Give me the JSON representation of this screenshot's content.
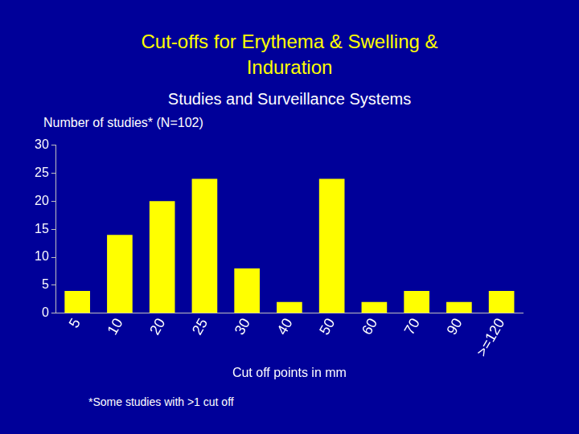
{
  "chart_data": {
    "type": "bar",
    "title": [
      "Cut-offs for Erythema & Swelling &",
      "Induration"
    ],
    "subtitle": "Studies and Surveillance Systems",
    "ylabel": "Number of studies* (N=102)",
    "xlabel": "Cut off points in mm",
    "annotations": [
      "*Some studies with >1 cut off"
    ],
    "categories": [
      "5",
      "10",
      "20",
      "25",
      "30",
      "40",
      "50",
      "60",
      "70",
      "90",
      ">=120"
    ],
    "values": [
      4,
      14,
      20,
      24,
      8,
      2,
      24,
      2,
      4,
      2,
      4
    ],
    "color": "#ffff00",
    "ylim": [
      0,
      30
    ],
    "yticks": [
      0,
      5,
      10,
      15,
      20,
      25,
      30
    ],
    "grid": false
  }
}
